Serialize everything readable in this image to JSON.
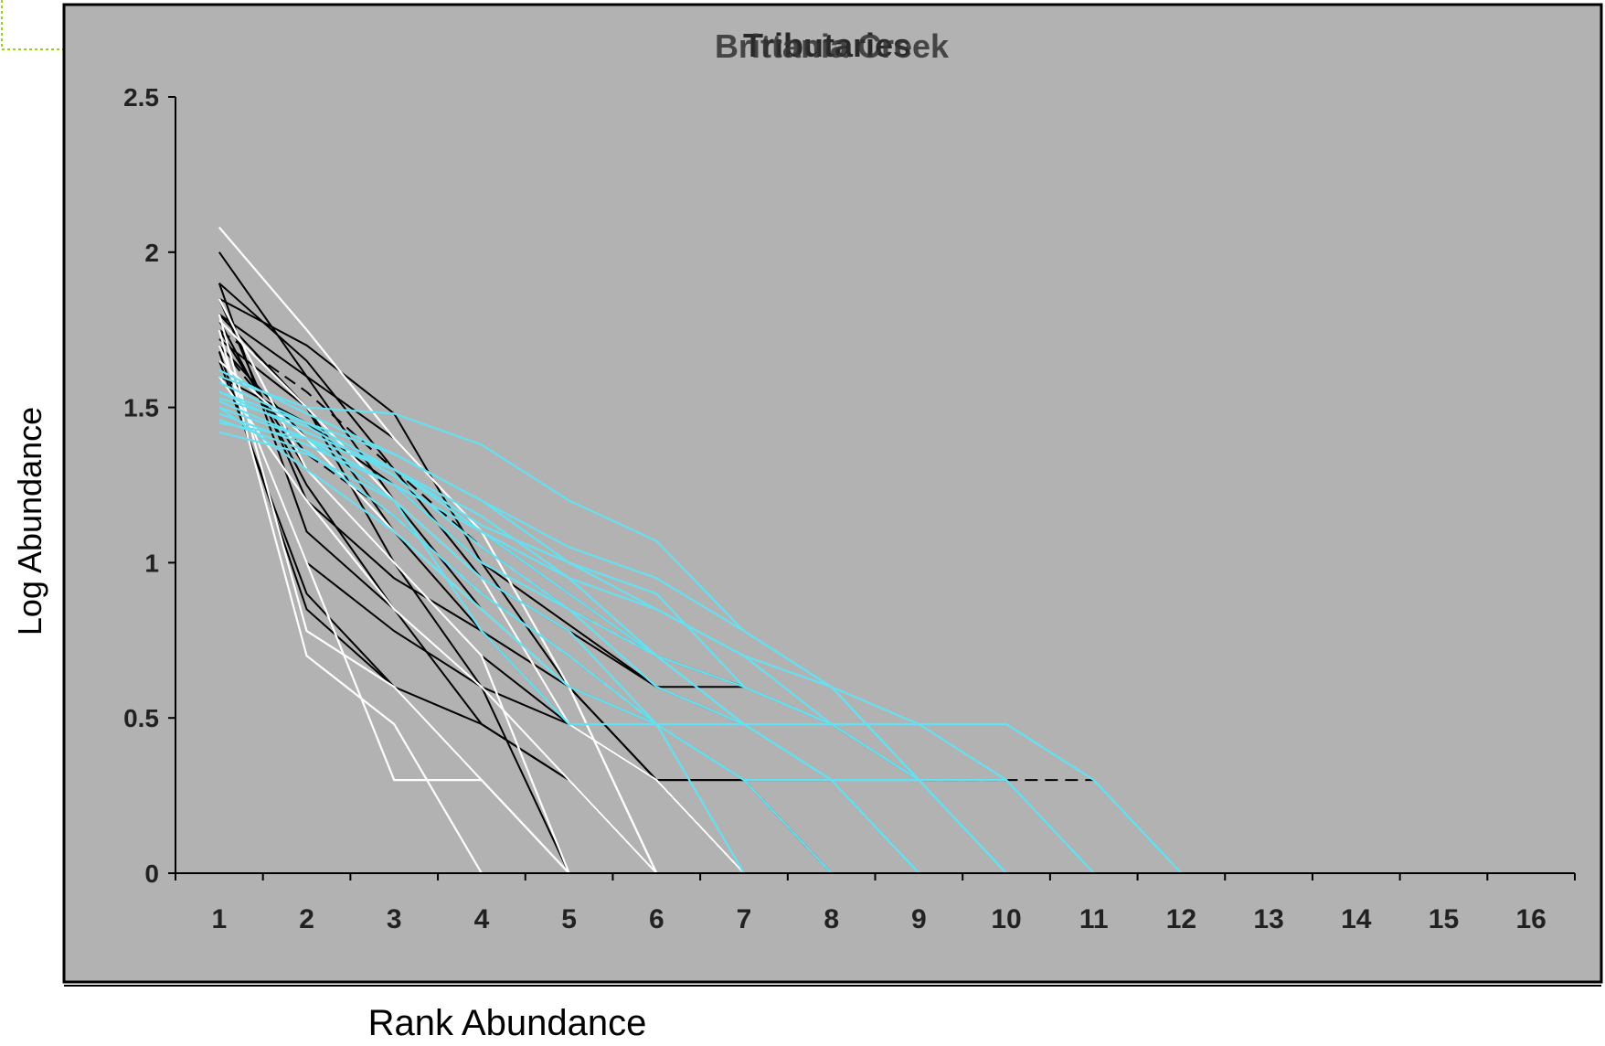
{
  "chart_data": {
    "type": "line",
    "title": "Brittania Creek",
    "title_overlay": "Tributaries",
    "xlabel": "Rank Abundance",
    "ylabel": "Log Abundance",
    "x_ticks": [
      1,
      2,
      3,
      4,
      5,
      6,
      7,
      8,
      9,
      10,
      11,
      12,
      13,
      14,
      15,
      16
    ],
    "y_ticks": [
      0,
      0.5,
      1,
      1.5,
      2,
      2.5
    ],
    "xlim": [
      0.5,
      16.5
    ],
    "ylim": [
      0,
      2.5
    ],
    "grid": false,
    "legend": "none",
    "colors": {
      "plot_background": "#b2b2b2",
      "series_black": "#000000",
      "series_white": "#ffffff",
      "series_cyan": "#66e0f0",
      "axis": "#000000"
    },
    "series": [
      {
        "color": "black",
        "values": [
          1.85,
          1.7,
          1.48,
          1.0,
          0.6,
          0.3,
          0
        ]
      },
      {
        "color": "black",
        "values": [
          1.9,
          1.65,
          1.3,
          0.95,
          0.48,
          0.3,
          0
        ]
      },
      {
        "color": "black",
        "values": [
          2.0,
          1.6,
          1.2,
          0.85,
          0.6,
          0.3,
          0.3,
          0
        ]
      },
      {
        "color": "black",
        "values": [
          1.8,
          1.5,
          1.1,
          0.78,
          0.48,
          0.3,
          0
        ]
      },
      {
        "color": "black",
        "values": [
          1.75,
          1.3,
          1.0,
          0.7,
          0.48,
          0.3,
          0.3,
          0.3,
          0
        ]
      },
      {
        "color": "black",
        "values": [
          1.7,
          1.0,
          0.78,
          0.6,
          0.3,
          0
        ]
      },
      {
        "color": "black",
        "values": [
          1.65,
          0.9,
          0.6,
          0.3,
          0
        ]
      },
      {
        "color": "black",
        "values": [
          1.85,
          1.2,
          0.95,
          0.78,
          0.6,
          0.48,
          0.3,
          0
        ]
      },
      {
        "color": "black",
        "values": [
          1.7,
          1.4,
          1.2,
          0.95,
          0.78,
          0.6,
          0.48,
          0.3,
          0
        ]
      },
      {
        "color": "black",
        "values": [
          1.8,
          1.6,
          1.4,
          1.1,
          0.9,
          0.7,
          0.6,
          0.48,
          0.3,
          0.3,
          0
        ]
      },
      {
        "color": "black",
        "dashed": true,
        "values": [
          1.75,
          1.55,
          1.3,
          1.05,
          0.85,
          0.7,
          0.6,
          0.48,
          0.3,
          0.3,
          0.3,
          0,
          0
        ]
      },
      {
        "color": "black",
        "values": [
          1.6,
          1.45,
          1.25,
          1.0,
          0.8,
          0.6,
          0.6,
          0.48,
          0.3,
          0
        ]
      },
      {
        "color": "black",
        "values": [
          1.9,
          1.1,
          0.85,
          0.6,
          0.48,
          0.3,
          0
        ]
      },
      {
        "color": "black",
        "values": [
          1.72,
          1.5,
          1.0,
          0.6,
          0
        ]
      },
      {
        "color": "black",
        "values": [
          1.68,
          0.85,
          0.6,
          0.48,
          0.3,
          0
        ]
      },
      {
        "color": "black",
        "dashed": true,
        "values": [
          1.7,
          1.35,
          1.15,
          0.9,
          0.7,
          0.48,
          0.3,
          0
        ]
      },
      {
        "color": "black",
        "values": [
          1.78,
          1.25,
          0.85,
          0.48,
          0.3,
          0
        ]
      },
      {
        "color": "white",
        "values": [
          2.08,
          1.75,
          1.4,
          1.1,
          0.6,
          0
        ]
      },
      {
        "color": "white",
        "values": [
          1.8,
          0.78,
          0.6,
          0.3,
          0
        ]
      },
      {
        "color": "white",
        "values": [
          1.75,
          0.7,
          0.48,
          0
        ]
      },
      {
        "color": "white",
        "values": [
          1.7,
          1.0,
          0.3,
          0.3,
          0
        ]
      },
      {
        "color": "white",
        "values": [
          1.65,
          1.4,
          1.1,
          0.85,
          0.6,
          0
        ]
      },
      {
        "color": "white",
        "values": [
          1.85,
          1.3,
          1.0,
          0.7,
          0
        ]
      },
      {
        "color": "white",
        "values": [
          1.78,
          1.5,
          1.2,
          0.95,
          0.48,
          0.3,
          0
        ]
      },
      {
        "color": "white",
        "values": [
          1.6,
          1.2,
          0.85,
          0.6,
          0.3,
          0
        ]
      },
      {
        "color": "cyan",
        "values": [
          1.6,
          1.5,
          1.48,
          1.38,
          1.2,
          1.07,
          0.78,
          0.6,
          0.48,
          0.48,
          0.3,
          0
        ]
      },
      {
        "color": "cyan",
        "values": [
          1.55,
          1.45,
          1.35,
          1.2,
          1.0,
          0.85,
          0.7,
          0.48,
          0.48,
          0.3,
          0
        ]
      },
      {
        "color": "cyan",
        "values": [
          1.5,
          1.4,
          1.3,
          1.1,
          0.9,
          0.7,
          0.6,
          0.48,
          0.3,
          0
        ]
      },
      {
        "color": "cyan",
        "values": [
          1.45,
          1.4,
          1.25,
          1.0,
          0.85,
          0.6,
          0.48,
          0.3,
          0
        ]
      },
      {
        "color": "cyan",
        "values": [
          1.42,
          1.35,
          1.2,
          0.95,
          0.78,
          0.48,
          0.3,
          0
        ]
      },
      {
        "color": "cyan",
        "values": [
          1.58,
          1.45,
          1.3,
          1.15,
          0.95,
          0.7,
          0.48,
          0.48,
          0.48,
          0.48,
          0.3,
          0
        ]
      },
      {
        "color": "cyan",
        "values": [
          1.52,
          1.4,
          1.2,
          0.78,
          0.48,
          0.48,
          0.48,
          0.3,
          0
        ]
      },
      {
        "color": "cyan",
        "values": [
          1.48,
          1.38,
          1.25,
          1.1,
          0.95,
          0.85,
          0.7,
          0.6,
          0.3,
          0
        ]
      },
      {
        "color": "cyan",
        "values": [
          1.55,
          1.42,
          1.3,
          1.12,
          1.0,
          0.9,
          0.6,
          0.48,
          0.3,
          0.3,
          0
        ]
      },
      {
        "color": "cyan",
        "values": [
          1.62,
          1.48,
          1.35,
          1.2,
          1.05,
          0.95,
          0.78,
          0.6,
          0.3,
          0
        ]
      },
      {
        "color": "cyan",
        "values": [
          1.46,
          1.36,
          1.15,
          0.9,
          0.7,
          0.48,
          0.3,
          0.3,
          0.3,
          0
        ]
      },
      {
        "color": "cyan",
        "values": [
          1.53,
          1.44,
          1.28,
          1.05,
          0.85,
          0.7,
          0.48,
          0.3,
          0
        ]
      },
      {
        "color": "cyan",
        "values": [
          1.5,
          1.3,
          1.1,
          0.85,
          0.6,
          0.48,
          0
        ]
      }
    ]
  }
}
